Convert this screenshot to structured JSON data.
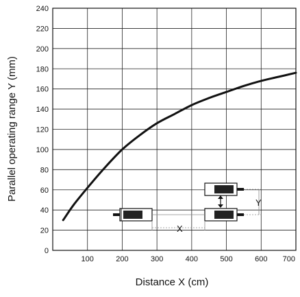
{
  "chart_data": {
    "type": "line",
    "xlabel": "Distance X (cm)",
    "ylabel": "Parallel operating range Y  (mm)",
    "xlim": [
      0,
      700
    ],
    "ylim": [
      0,
      240
    ],
    "x_ticks": [
      100,
      200,
      300,
      400,
      500,
      600,
      700
    ],
    "x_tick_labels": [
      "100",
      "200",
      "300",
      "400",
      "500",
      "600",
      "700"
    ],
    "y_ticks": [
      0,
      20,
      40,
      60,
      80,
      100,
      120,
      140,
      160,
      180,
      200,
      220,
      240
    ],
    "y_tick_labels": [
      "0",
      "20",
      "40",
      "60",
      "80",
      "100",
      "120",
      "140",
      "160",
      "180",
      "200",
      "220",
      "240"
    ],
    "grid": true,
    "series": [
      {
        "x": [
          30,
          60,
          100,
          150,
          200,
          250,
          300,
          350,
          400,
          450,
          500,
          550,
          600,
          650,
          700
        ],
        "y": [
          30,
          45,
          62,
          82,
          100,
          114,
          126,
          135,
          144,
          151,
          157,
          163,
          168,
          172,
          176
        ]
      }
    ],
    "inset": {
      "x_label": "X",
      "y_label": "Y"
    }
  }
}
